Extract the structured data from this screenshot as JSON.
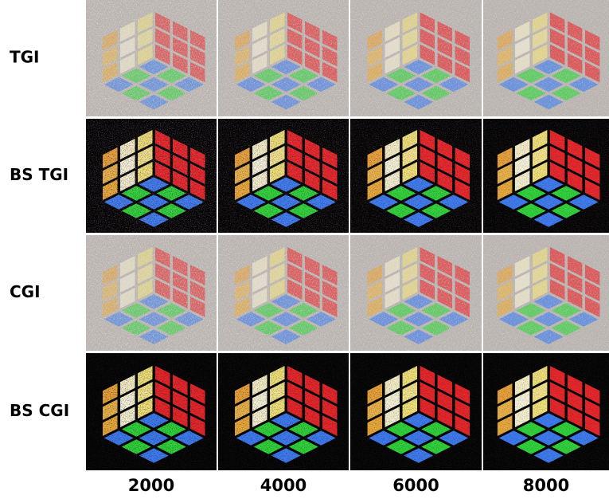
{
  "rows": [
    "TGI",
    "BS TGI",
    "CGI",
    "BS CGI"
  ],
  "columns": [
    "2000",
    "4000",
    "6000",
    "8000"
  ]
}
